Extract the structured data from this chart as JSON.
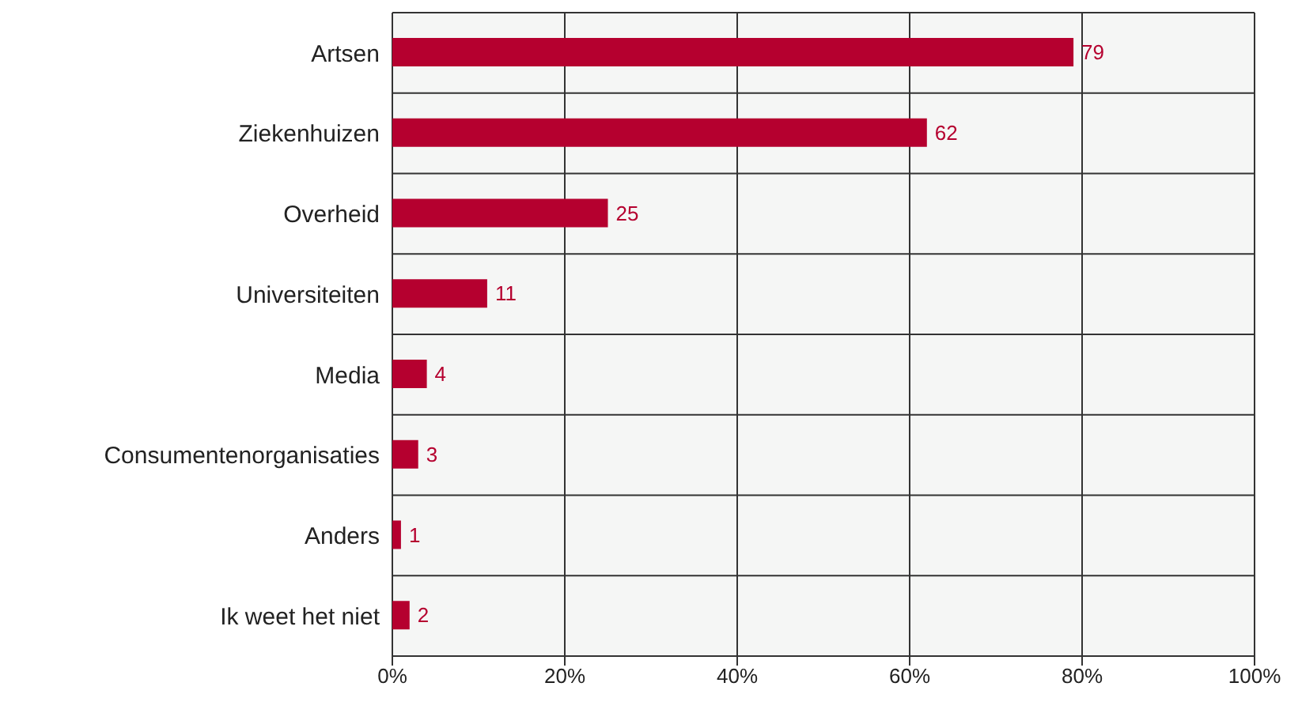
{
  "chart_data": {
    "type": "bar",
    "orientation": "horizontal",
    "categories": [
      "Artsen",
      "Ziekenhuizen",
      "Overheid",
      "Universiteiten",
      "Media",
      "Consumentenorganisaties",
      "Anders",
      "Ik weet het niet"
    ],
    "values": [
      79,
      62,
      25,
      11,
      4,
      3,
      1,
      2
    ],
    "color": "#b5002f",
    "xlim": [
      0,
      100
    ],
    "xticks": [
      {
        "value": 0,
        "label": "0%"
      },
      {
        "value": 20,
        "label": "20%"
      },
      {
        "value": 40,
        "label": "40%"
      },
      {
        "value": 60,
        "label": "60%"
      },
      {
        "value": 80,
        "label": "80%"
      },
      {
        "value": 100,
        "label": "100%"
      }
    ],
    "grid": true,
    "data_labels": true
  }
}
